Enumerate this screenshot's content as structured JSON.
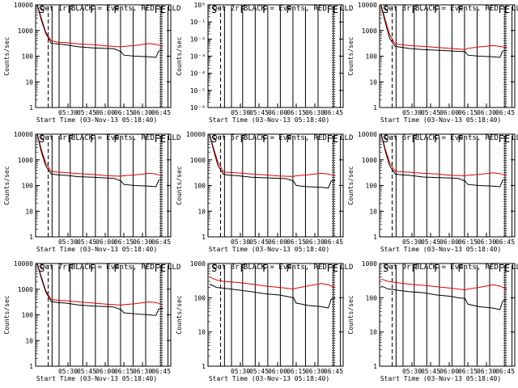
{
  "colors": {
    "events": "#000000",
    "lld": "#e00000",
    "background": "#ffffff"
  },
  "chart_data": {
    "type": "line",
    "ylabel": "Counts/sec",
    "xlabel": "Start Time (03-Nov-13 05:18:40)",
    "xticks": [
      "05:30",
      "05:45",
      "06:00",
      "06:15",
      "06:30",
      "06:45"
    ],
    "yscale": "log",
    "panels": [
      {
        "id": "p1",
        "title": "Det 1r BLACK = Events, RED = LLD",
        "ylim": [
          1,
          10000
        ],
        "yticks": [
          "1",
          "10",
          "100",
          "1000",
          "10000"
        ],
        "markers": [
          "S",
          "F",
          "F",
          "F",
          "FE"
        ],
        "x": [
          0,
          3,
          6,
          10,
          15,
          20,
          30,
          40,
          50,
          55,
          60,
          62,
          70,
          80,
          85,
          87,
          90
        ],
        "events": [
          10000,
          2500,
          800,
          320,
          300,
          280,
          230,
          210,
          200,
          195,
          150,
          110,
          100,
          95,
          90,
          160,
          170
        ],
        "lld": [
          10000,
          3000,
          900,
          400,
          350,
          340,
          300,
          280,
          250,
          240,
          230,
          240,
          260,
          310,
          290,
          270,
          240
        ]
      },
      {
        "id": "p2",
        "title": "Det 2r BLACK = Events, RED = LLD",
        "ylim": [
          1e-06,
          1
        ],
        "yticks": [
          "10⁻⁶",
          "10⁻⁵",
          "10⁻⁴",
          "10⁻³",
          "10⁻²",
          "10⁻¹",
          "10⁰"
        ],
        "markers": [
          "S",
          "F",
          "F",
          "F",
          "FE"
        ],
        "x": [],
        "events": [],
        "lld": []
      },
      {
        "id": "p3",
        "title": "Det 3r BLACK = Events, RED = LLD",
        "ylim": [
          1,
          10000
        ],
        "yticks": [
          "1",
          "10",
          "100",
          "1000",
          "10000"
        ],
        "markers": [
          "S",
          "F",
          "F",
          "F",
          "FE"
        ],
        "x": [
          0,
          3,
          6,
          10,
          15,
          20,
          30,
          40,
          50,
          55,
          60,
          62,
          70,
          80,
          85,
          87,
          90
        ],
        "events": [
          9000,
          2000,
          500,
          240,
          220,
          200,
          180,
          170,
          160,
          155,
          150,
          110,
          100,
          95,
          90,
          160,
          170
        ],
        "lld": [
          9500,
          2500,
          700,
          300,
          280,
          260,
          240,
          220,
          200,
          190,
          180,
          200,
          230,
          260,
          240,
          230,
          220
        ]
      },
      {
        "id": "p4",
        "title": "Det 4r BLACK = Events, RED = LLD",
        "ylim": [
          1,
          10000
        ],
        "yticks": [
          "1",
          "10",
          "100",
          "1000",
          "10000"
        ],
        "markers": [
          "S",
          "F",
          "F",
          "F",
          "FE"
        ],
        "x": [
          0,
          3,
          6,
          10,
          15,
          20,
          30,
          40,
          50,
          55,
          60,
          62,
          70,
          80,
          85,
          87,
          90
        ],
        "events": [
          10000,
          2000,
          600,
          280,
          260,
          250,
          220,
          210,
          195,
          190,
          150,
          110,
          100,
          95,
          90,
          160,
          170
        ],
        "lld": [
          10000,
          2500,
          800,
          350,
          330,
          320,
          290,
          270,
          240,
          235,
          230,
          240,
          260,
          300,
          280,
          260,
          240
        ]
      },
      {
        "id": "p5",
        "title": "Det 5r BLACK = Events, RED = LLD",
        "ylim": [
          1,
          10000
        ],
        "yticks": [
          "1",
          "10",
          "100",
          "1000",
          "10000"
        ],
        "markers": [
          "S",
          "F",
          "F",
          "F",
          "FE"
        ],
        "x": [
          0,
          3,
          6,
          10,
          15,
          20,
          30,
          40,
          50,
          55,
          60,
          62,
          70,
          80,
          85,
          87,
          90
        ],
        "events": [
          10000,
          2200,
          600,
          270,
          250,
          240,
          210,
          200,
          190,
          185,
          150,
          100,
          90,
          85,
          80,
          150,
          160
        ],
        "lld": [
          10000,
          2600,
          800,
          340,
          320,
          310,
          280,
          260,
          235,
          230,
          225,
          240,
          260,
          300,
          280,
          260,
          240
        ]
      },
      {
        "id": "p6",
        "title": "Det 6r BLACK = Events, RED = LLD",
        "ylim": [
          1,
          10000
        ],
        "yticks": [
          "1",
          "10",
          "100",
          "1000",
          "10000"
        ],
        "markers": [
          "S",
          "F",
          "F",
          "F",
          "FE"
        ],
        "x": [
          0,
          3,
          6,
          10,
          15,
          20,
          30,
          40,
          50,
          55,
          60,
          62,
          70,
          80,
          85,
          87,
          90
        ],
        "events": [
          10000,
          2100,
          600,
          280,
          260,
          250,
          215,
          205,
          195,
          190,
          150,
          110,
          100,
          95,
          90,
          160,
          170
        ],
        "lld": [
          10000,
          2500,
          800,
          360,
          340,
          330,
          300,
          280,
          250,
          245,
          240,
          250,
          270,
          310,
          290,
          270,
          250
        ]
      },
      {
        "id": "p7",
        "title": "Det 7r BLACK = Events, RED = LLD",
        "ylim": [
          1,
          10000
        ],
        "yticks": [
          "1",
          "10",
          "100",
          "1000",
          "10000"
        ],
        "markers": [
          "S",
          "F",
          "F",
          "F",
          "FE"
        ],
        "x": [
          0,
          3,
          6,
          10,
          15,
          20,
          30,
          40,
          50,
          55,
          60,
          62,
          70,
          80,
          85,
          87,
          90
        ],
        "events": [
          10000,
          2600,
          800,
          330,
          300,
          290,
          240,
          220,
          210,
          200,
          160,
          120,
          110,
          100,
          95,
          170,
          180
        ],
        "lld": [
          10000,
          3000,
          900,
          400,
          370,
          360,
          320,
          290,
          260,
          250,
          240,
          250,
          270,
          320,
          300,
          280,
          250
        ]
      },
      {
        "id": "p8",
        "title": "Det 8r BLACK = Events, RED = LLD",
        "ylim": [
          1,
          1000
        ],
        "yticks": [
          "1",
          "10",
          "100",
          "1000"
        ],
        "markers": [
          "S",
          "F",
          "F",
          "F",
          "FE"
        ],
        "x": [
          0,
          5,
          10,
          20,
          30,
          40,
          50,
          55,
          60,
          62,
          70,
          80,
          85,
          87,
          90
        ],
        "events": [
          250,
          200,
          190,
          170,
          150,
          130,
          120,
          110,
          100,
          70,
          60,
          55,
          50,
          90,
          100
        ],
        "lld": [
          400,
          330,
          300,
          280,
          250,
          220,
          200,
          190,
          180,
          190,
          220,
          260,
          240,
          220,
          200
        ]
      },
      {
        "id": "p9",
        "title": "Det 9r BLACK = Events, RED = LLD",
        "ylim": [
          1,
          1000
        ],
        "yticks": [
          "1",
          "10",
          "100",
          "1000"
        ],
        "markers": [
          "S",
          "F",
          "F",
          "F",
          "FE"
        ],
        "x": [
          0,
          5,
          10,
          20,
          30,
          40,
          50,
          55,
          60,
          62,
          70,
          80,
          85,
          87,
          90
        ],
        "events": [
          220,
          180,
          170,
          150,
          140,
          120,
          110,
          100,
          95,
          65,
          55,
          50,
          45,
          80,
          90
        ],
        "lld": [
          350,
          300,
          280,
          250,
          230,
          210,
          190,
          180,
          170,
          180,
          200,
          240,
          220,
          200,
          180
        ]
      }
    ]
  }
}
